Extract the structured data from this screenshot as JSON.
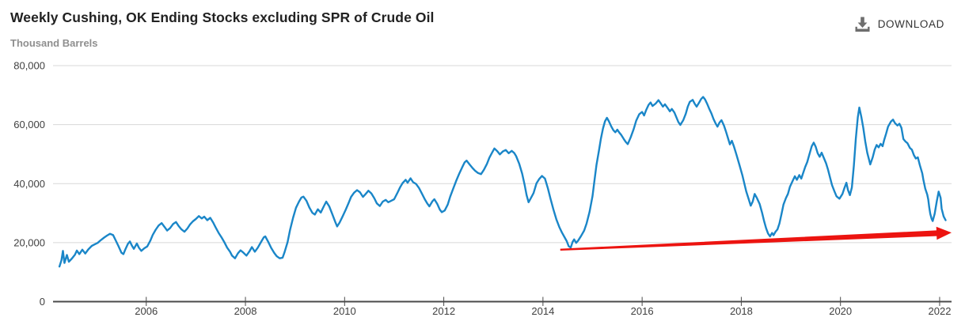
{
  "header": {
    "title": "Weekly Cushing, OK Ending Stocks excluding SPR of Crude Oil",
    "download_label": "DOWNLOAD"
  },
  "colors": {
    "line": "#1a86c8",
    "arrow": "#ec1410",
    "grid": "#d8d8d8",
    "axis": "#4a4a4a",
    "tick_label": "#404040",
    "icon": "#6e6e6e"
  },
  "chart_data": {
    "type": "line",
    "title": "Weekly Cushing, OK Ending Stocks excluding SPR of Crude Oil",
    "ylabel": "Thousand Barrels",
    "xlabel": "",
    "grid": true,
    "legend": "none",
    "xlim": [
      2004.12,
      2022.24
    ],
    "ylim": [
      0,
      80000
    ],
    "x_ticks": [
      2006,
      2008,
      2010,
      2012,
      2014,
      2016,
      2018,
      2020,
      2022
    ],
    "x_tick_labels": [
      "2006",
      "2008",
      "2010",
      "2012",
      "2014",
      "2016",
      "2018",
      "2020",
      "2022"
    ],
    "y_ticks": [
      0,
      20000,
      40000,
      60000,
      80000
    ],
    "y_tick_labels": [
      "0",
      "20,000",
      "40,000",
      "60,000",
      "80,000"
    ],
    "annotation_arrow": {
      "description": "red trend arrow",
      "from": [
        2014.35,
        17600
      ],
      "to": [
        2022.24,
        23400
      ]
    },
    "points": [
      [
        2004.25,
        11900
      ],
      [
        2004.29,
        14000
      ],
      [
        2004.32,
        17200
      ],
      [
        2004.35,
        13100
      ],
      [
        2004.4,
        15800
      ],
      [
        2004.44,
        13500
      ],
      [
        2004.5,
        14600
      ],
      [
        2004.56,
        15900
      ],
      [
        2004.6,
        17300
      ],
      [
        2004.65,
        16100
      ],
      [
        2004.71,
        17600
      ],
      [
        2004.77,
        16300
      ],
      [
        2004.83,
        17700
      ],
      [
        2004.9,
        18900
      ],
      [
        2004.96,
        19400
      ],
      [
        2005.02,
        19900
      ],
      [
        2005.08,
        20800
      ],
      [
        2005.15,
        21700
      ],
      [
        2005.21,
        22400
      ],
      [
        2005.27,
        23000
      ],
      [
        2005.33,
        22600
      ],
      [
        2005.38,
        20900
      ],
      [
        2005.44,
        18800
      ],
      [
        2005.5,
        16600
      ],
      [
        2005.54,
        16100
      ],
      [
        2005.58,
        17800
      ],
      [
        2005.63,
        19600
      ],
      [
        2005.67,
        20400
      ],
      [
        2005.71,
        19000
      ],
      [
        2005.75,
        17900
      ],
      [
        2005.81,
        19700
      ],
      [
        2005.85,
        18300
      ],
      [
        2005.9,
        17200
      ],
      [
        2005.96,
        18100
      ],
      [
        2006.02,
        18700
      ],
      [
        2006.08,
        20600
      ],
      [
        2006.13,
        22600
      ],
      [
        2006.19,
        24400
      ],
      [
        2006.25,
        25800
      ],
      [
        2006.31,
        26600
      ],
      [
        2006.37,
        25300
      ],
      [
        2006.42,
        24100
      ],
      [
        2006.48,
        24900
      ],
      [
        2006.54,
        26300
      ],
      [
        2006.6,
        27000
      ],
      [
        2006.65,
        25700
      ],
      [
        2006.71,
        24500
      ],
      [
        2006.77,
        23700
      ],
      [
        2006.83,
        24800
      ],
      [
        2006.88,
        26100
      ],
      [
        2006.94,
        27200
      ],
      [
        2007.0,
        28000
      ],
      [
        2007.06,
        29000
      ],
      [
        2007.12,
        28200
      ],
      [
        2007.17,
        28800
      ],
      [
        2007.23,
        27600
      ],
      [
        2007.29,
        28400
      ],
      [
        2007.35,
        26800
      ],
      [
        2007.4,
        25100
      ],
      [
        2007.46,
        23300
      ],
      [
        2007.52,
        21700
      ],
      [
        2007.58,
        20000
      ],
      [
        2007.63,
        18300
      ],
      [
        2007.69,
        16900
      ],
      [
        2007.73,
        15600
      ],
      [
        2007.79,
        14700
      ],
      [
        2007.85,
        16400
      ],
      [
        2007.9,
        17400
      ],
      [
        2007.96,
        16600
      ],
      [
        2008.02,
        15600
      ],
      [
        2008.08,
        17000
      ],
      [
        2008.13,
        18500
      ],
      [
        2008.19,
        16900
      ],
      [
        2008.25,
        18300
      ],
      [
        2008.31,
        20100
      ],
      [
        2008.37,
        21800
      ],
      [
        2008.4,
        22100
      ],
      [
        2008.46,
        20300
      ],
      [
        2008.52,
        18200
      ],
      [
        2008.58,
        16500
      ],
      [
        2008.63,
        15400
      ],
      [
        2008.69,
        14700
      ],
      [
        2008.75,
        14900
      ],
      [
        2008.79,
        16800
      ],
      [
        2008.85,
        20200
      ],
      [
        2008.9,
        24300
      ],
      [
        2008.96,
        28400
      ],
      [
        2009.02,
        31800
      ],
      [
        2009.08,
        33900
      ],
      [
        2009.13,
        35300
      ],
      [
        2009.17,
        35600
      ],
      [
        2009.23,
        34200
      ],
      [
        2009.29,
        31900
      ],
      [
        2009.35,
        30100
      ],
      [
        2009.4,
        29500
      ],
      [
        2009.46,
        31300
      ],
      [
        2009.52,
        30200
      ],
      [
        2009.58,
        32300
      ],
      [
        2009.63,
        33900
      ],
      [
        2009.69,
        32300
      ],
      [
        2009.75,
        29700
      ],
      [
        2009.81,
        27100
      ],
      [
        2009.85,
        25500
      ],
      [
        2009.9,
        26800
      ],
      [
        2009.96,
        28900
      ],
      [
        2010.02,
        31100
      ],
      [
        2010.08,
        33400
      ],
      [
        2010.13,
        35500
      ],
      [
        2010.19,
        36900
      ],
      [
        2010.25,
        37800
      ],
      [
        2010.31,
        37100
      ],
      [
        2010.37,
        35500
      ],
      [
        2010.42,
        36400
      ],
      [
        2010.48,
        37600
      ],
      [
        2010.54,
        36700
      ],
      [
        2010.6,
        35000
      ],
      [
        2010.65,
        33300
      ],
      [
        2010.71,
        32400
      ],
      [
        2010.77,
        33900
      ],
      [
        2010.83,
        34500
      ],
      [
        2010.88,
        33700
      ],
      [
        2010.94,
        34200
      ],
      [
        2011.0,
        34700
      ],
      [
        2011.06,
        36700
      ],
      [
        2011.12,
        38800
      ],
      [
        2011.17,
        40200
      ],
      [
        2011.23,
        41300
      ],
      [
        2011.27,
        40300
      ],
      [
        2011.33,
        41800
      ],
      [
        2011.38,
        40500
      ],
      [
        2011.44,
        39900
      ],
      [
        2011.5,
        38500
      ],
      [
        2011.56,
        36600
      ],
      [
        2011.62,
        34600
      ],
      [
        2011.67,
        33200
      ],
      [
        2011.71,
        32300
      ],
      [
        2011.77,
        34000
      ],
      [
        2011.81,
        34700
      ],
      [
        2011.87,
        33100
      ],
      [
        2011.92,
        31200
      ],
      [
        2011.96,
        30300
      ],
      [
        2012.02,
        30900
      ],
      [
        2012.08,
        32900
      ],
      [
        2012.13,
        35600
      ],
      [
        2012.19,
        38300
      ],
      [
        2012.25,
        40900
      ],
      [
        2012.31,
        43300
      ],
      [
        2012.37,
        45500
      ],
      [
        2012.42,
        47200
      ],
      [
        2012.46,
        47800
      ],
      [
        2012.52,
        46500
      ],
      [
        2012.58,
        45300
      ],
      [
        2012.63,
        44400
      ],
      [
        2012.69,
        43600
      ],
      [
        2012.75,
        43200
      ],
      [
        2012.81,
        44700
      ],
      [
        2012.87,
        46700
      ],
      [
        2012.92,
        48800
      ],
      [
        2012.98,
        50700
      ],
      [
        2013.02,
        51900
      ],
      [
        2013.08,
        51000
      ],
      [
        2013.13,
        49900
      ],
      [
        2013.19,
        50900
      ],
      [
        2013.25,
        51400
      ],
      [
        2013.31,
        50300
      ],
      [
        2013.37,
        51100
      ],
      [
        2013.42,
        50400
      ],
      [
        2013.46,
        49300
      ],
      [
        2013.52,
        46800
      ],
      [
        2013.58,
        43400
      ],
      [
        2013.63,
        39600
      ],
      [
        2013.67,
        36100
      ],
      [
        2013.71,
        33700
      ],
      [
        2013.75,
        34900
      ],
      [
        2013.81,
        36800
      ],
      [
        2013.87,
        40100
      ],
      [
        2013.92,
        41500
      ],
      [
        2013.98,
        42600
      ],
      [
        2014.04,
        41700
      ],
      [
        2014.1,
        38400
      ],
      [
        2014.15,
        35000
      ],
      [
        2014.21,
        31300
      ],
      [
        2014.27,
        27900
      ],
      [
        2014.33,
        25300
      ],
      [
        2014.38,
        23500
      ],
      [
        2014.44,
        21700
      ],
      [
        2014.48,
        20500
      ],
      [
        2014.52,
        18800
      ],
      [
        2014.56,
        18300
      ],
      [
        2014.6,
        20300
      ],
      [
        2014.63,
        21100
      ],
      [
        2014.67,
        19900
      ],
      [
        2014.71,
        20700
      ],
      [
        2014.77,
        22300
      ],
      [
        2014.83,
        24100
      ],
      [
        2014.88,
        26500
      ],
      [
        2014.94,
        30400
      ],
      [
        2015.0,
        35800
      ],
      [
        2015.04,
        41200
      ],
      [
        2015.08,
        46400
      ],
      [
        2015.13,
        51200
      ],
      [
        2015.17,
        55300
      ],
      [
        2015.21,
        58700
      ],
      [
        2015.25,
        61100
      ],
      [
        2015.29,
        62300
      ],
      [
        2015.33,
        61100
      ],
      [
        2015.38,
        59300
      ],
      [
        2015.42,
        58100
      ],
      [
        2015.46,
        57400
      ],
      [
        2015.5,
        58300
      ],
      [
        2015.54,
        57300
      ],
      [
        2015.58,
        56500
      ],
      [
        2015.63,
        55100
      ],
      [
        2015.67,
        54100
      ],
      [
        2015.71,
        53400
      ],
      [
        2015.77,
        55700
      ],
      [
        2015.83,
        58500
      ],
      [
        2015.88,
        61300
      ],
      [
        2015.94,
        63500
      ],
      [
        2016.0,
        64300
      ],
      [
        2016.04,
        63100
      ],
      [
        2016.08,
        64900
      ],
      [
        2016.13,
        66700
      ],
      [
        2016.17,
        67500
      ],
      [
        2016.21,
        66300
      ],
      [
        2016.27,
        67100
      ],
      [
        2016.33,
        68300
      ],
      [
        2016.38,
        67100
      ],
      [
        2016.42,
        66100
      ],
      [
        2016.46,
        66900
      ],
      [
        2016.52,
        65500
      ],
      [
        2016.56,
        64500
      ],
      [
        2016.6,
        65300
      ],
      [
        2016.65,
        64100
      ],
      [
        2016.69,
        62500
      ],
      [
        2016.73,
        60900
      ],
      [
        2016.77,
        59900
      ],
      [
        2016.83,
        61500
      ],
      [
        2016.88,
        63700
      ],
      [
        2016.92,
        66100
      ],
      [
        2016.96,
        67700
      ],
      [
        2017.02,
        68400
      ],
      [
        2017.06,
        67100
      ],
      [
        2017.1,
        66100
      ],
      [
        2017.15,
        67500
      ],
      [
        2017.19,
        68700
      ],
      [
        2017.23,
        69400
      ],
      [
        2017.27,
        68500
      ],
      [
        2017.31,
        67100
      ],
      [
        2017.35,
        65500
      ],
      [
        2017.4,
        63700
      ],
      [
        2017.44,
        61900
      ],
      [
        2017.48,
        60500
      ],
      [
        2017.52,
        59300
      ],
      [
        2017.56,
        60700
      ],
      [
        2017.6,
        61500
      ],
      [
        2017.65,
        59700
      ],
      [
        2017.69,
        57700
      ],
      [
        2017.73,
        55500
      ],
      [
        2017.77,
        53300
      ],
      [
        2017.81,
        54500
      ],
      [
        2017.85,
        52700
      ],
      [
        2017.9,
        49900
      ],
      [
        2017.96,
        46500
      ],
      [
        2018.02,
        42900
      ],
      [
        2018.06,
        40100
      ],
      [
        2018.1,
        37300
      ],
      [
        2018.15,
        34700
      ],
      [
        2018.19,
        32500
      ],
      [
        2018.23,
        33900
      ],
      [
        2018.27,
        36500
      ],
      [
        2018.31,
        35300
      ],
      [
        2018.37,
        33100
      ],
      [
        2018.42,
        30100
      ],
      [
        2018.46,
        27300
      ],
      [
        2018.5,
        24900
      ],
      [
        2018.54,
        23100
      ],
      [
        2018.58,
        22100
      ],
      [
        2018.62,
        23300
      ],
      [
        2018.65,
        22500
      ],
      [
        2018.69,
        23700
      ],
      [
        2018.73,
        24500
      ],
      [
        2018.77,
        26500
      ],
      [
        2018.81,
        29700
      ],
      [
        2018.85,
        32900
      ],
      [
        2018.9,
        35100
      ],
      [
        2018.94,
        36500
      ],
      [
        2018.98,
        38900
      ],
      [
        2019.04,
        41100
      ],
      [
        2019.08,
        42500
      ],
      [
        2019.12,
        41300
      ],
      [
        2019.17,
        42900
      ],
      [
        2019.21,
        41700
      ],
      [
        2019.25,
        43700
      ],
      [
        2019.29,
        45700
      ],
      [
        2019.33,
        47300
      ],
      [
        2019.37,
        49700
      ],
      [
        2019.42,
        52700
      ],
      [
        2019.46,
        53900
      ],
      [
        2019.5,
        52500
      ],
      [
        2019.54,
        50300
      ],
      [
        2019.58,
        49100
      ],
      [
        2019.62,
        50500
      ],
      [
        2019.67,
        48500
      ],
      [
        2019.71,
        46900
      ],
      [
        2019.75,
        44700
      ],
      [
        2019.79,
        42100
      ],
      [
        2019.83,
        39500
      ],
      [
        2019.88,
        37300
      ],
      [
        2019.92,
        35700
      ],
      [
        2019.98,
        34900
      ],
      [
        2020.04,
        36500
      ],
      [
        2020.08,
        38500
      ],
      [
        2020.12,
        40300
      ],
      [
        2020.15,
        37900
      ],
      [
        2020.19,
        36100
      ],
      [
        2020.23,
        38700
      ],
      [
        2020.27,
        46100
      ],
      [
        2020.31,
        55300
      ],
      [
        2020.35,
        62500
      ],
      [
        2020.38,
        65800
      ],
      [
        2020.42,
        62700
      ],
      [
        2020.46,
        58900
      ],
      [
        2020.5,
        54300
      ],
      [
        2020.54,
        50500
      ],
      [
        2020.58,
        47900
      ],
      [
        2020.6,
        46500
      ],
      [
        2020.65,
        48900
      ],
      [
        2020.69,
        51500
      ],
      [
        2020.73,
        53100
      ],
      [
        2020.77,
        52300
      ],
      [
        2020.81,
        53500
      ],
      [
        2020.85,
        52700
      ],
      [
        2020.88,
        54700
      ],
      [
        2020.92,
        56900
      ],
      [
        2020.96,
        59300
      ],
      [
        2021.02,
        61100
      ],
      [
        2021.06,
        61700
      ],
      [
        2021.1,
        60500
      ],
      [
        2021.15,
        59700
      ],
      [
        2021.19,
        60300
      ],
      [
        2021.23,
        58900
      ],
      [
        2021.27,
        55100
      ],
      [
        2021.31,
        54300
      ],
      [
        2021.35,
        53700
      ],
      [
        2021.4,
        52100
      ],
      [
        2021.44,
        51500
      ],
      [
        2021.48,
        49700
      ],
      [
        2021.52,
        48500
      ],
      [
        2021.56,
        48900
      ],
      [
        2021.6,
        46300
      ],
      [
        2021.65,
        43500
      ],
      [
        2021.67,
        41500
      ],
      [
        2021.71,
        38300
      ],
      [
        2021.75,
        36300
      ],
      [
        2021.77,
        34600
      ],
      [
        2021.79,
        32000
      ],
      [
        2021.81,
        29800
      ],
      [
        2021.84,
        28000
      ],
      [
        2021.86,
        27300
      ],
      [
        2021.9,
        29800
      ],
      [
        2021.94,
        33800
      ],
      [
        2021.98,
        37300
      ],
      [
        2022.02,
        35200
      ],
      [
        2022.04,
        31500
      ],
      [
        2022.08,
        28900
      ],
      [
        2022.12,
        27600
      ]
    ]
  }
}
